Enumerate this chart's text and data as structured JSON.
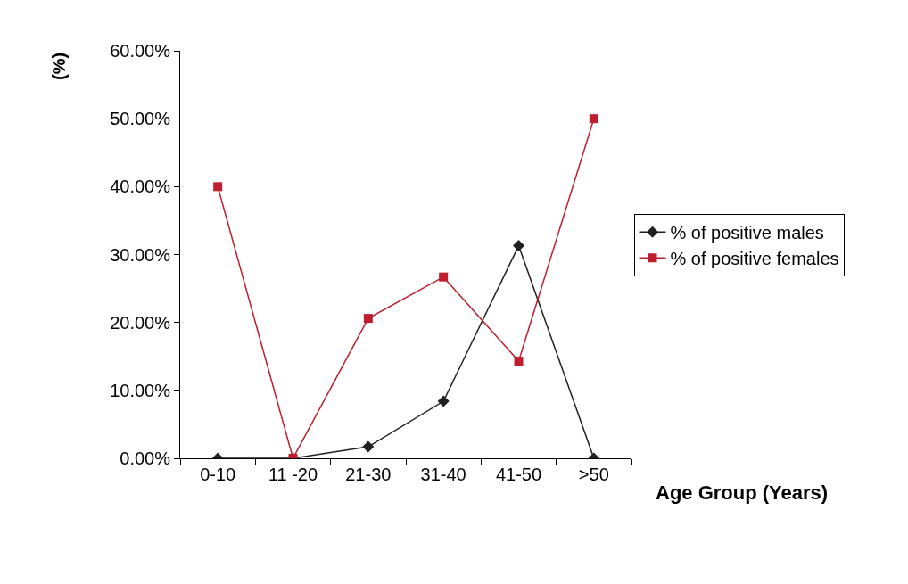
{
  "chart_data": {
    "type": "line",
    "xlabel": "Age Group (Years)",
    "ylabel": "(%)",
    "categories": [
      "0-10",
      "11 -20",
      "21-30",
      "31-40",
      "41-50",
      ">50"
    ],
    "series": [
      {
        "name": "% of positive males",
        "color": "#231f20",
        "marker": "diamond",
        "values": [
          0,
          0,
          1.7,
          8.4,
          31.3,
          0
        ]
      },
      {
        "name": "% of positive females",
        "color": "#be1e2d",
        "marker": "square",
        "values": [
          40,
          0,
          20.6,
          26.7,
          14.3,
          50
        ]
      }
    ],
    "ylim": [
      0,
      60
    ],
    "yticks": [
      {
        "value": 0,
        "label": "0.00%"
      },
      {
        "value": 10,
        "label": "10.00%"
      },
      {
        "value": 20,
        "label": "20.00%"
      },
      {
        "value": 30,
        "label": "30.00%"
      },
      {
        "value": 40,
        "label": "40.00%"
      },
      {
        "value": 50,
        "label": "50.00%"
      },
      {
        "value": 60,
        "label": "60.00%"
      }
    ],
    "grid": false,
    "legend": "right",
    "line_style": "solid"
  }
}
